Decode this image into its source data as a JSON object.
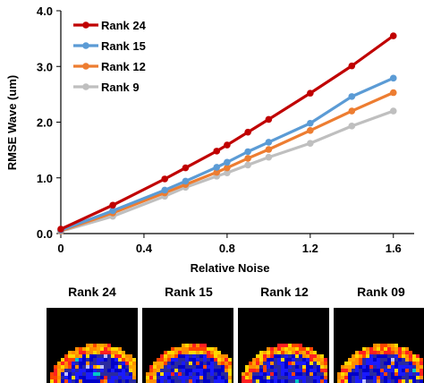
{
  "chart_data": {
    "type": "line",
    "title": "",
    "xlabel": "Relative Noise",
    "ylabel": "RMSE Wave (um)",
    "xlim": [
      0,
      1.7
    ],
    "ylim": [
      0,
      4.0
    ],
    "xticks": [
      "0",
      "0.4",
      "0.8",
      "1.2",
      "1.6"
    ],
    "yticks": [
      "0.0",
      "1.0",
      "2.0",
      "3.0",
      "4.0"
    ],
    "legend_position": "top-left",
    "grid": false,
    "x": [
      0,
      0.25,
      0.5,
      0.6,
      0.75,
      0.8,
      0.9,
      1.0,
      1.2,
      1.4,
      1.6
    ],
    "series": [
      {
        "name": "Rank 24",
        "color": "#c00000",
        "values": [
          0.08,
          0.51,
          0.98,
          1.18,
          1.48,
          1.59,
          1.82,
          2.05,
          2.52,
          3.01,
          3.55
        ]
      },
      {
        "name": "Rank 15",
        "color": "#5b9bd5",
        "values": [
          0.06,
          0.41,
          0.78,
          0.94,
          1.19,
          1.28,
          1.47,
          1.64,
          1.98,
          2.46,
          2.79
        ]
      },
      {
        "name": "Rank 12",
        "color": "#ed7d31",
        "values": [
          0.05,
          0.37,
          0.73,
          0.88,
          1.1,
          1.18,
          1.35,
          1.51,
          1.85,
          2.2,
          2.53
        ]
      },
      {
        "name": "Rank 9",
        "color": "#bfbfbf",
        "values": [
          0.04,
          0.31,
          0.67,
          0.83,
          1.03,
          1.09,
          1.23,
          1.37,
          1.62,
          1.93,
          2.2
        ]
      }
    ]
  },
  "panels": [
    {
      "title": "Rank 24"
    },
    {
      "title": "Rank 15"
    },
    {
      "title": "Rank 12"
    },
    {
      "title": "Rank 09"
    }
  ]
}
